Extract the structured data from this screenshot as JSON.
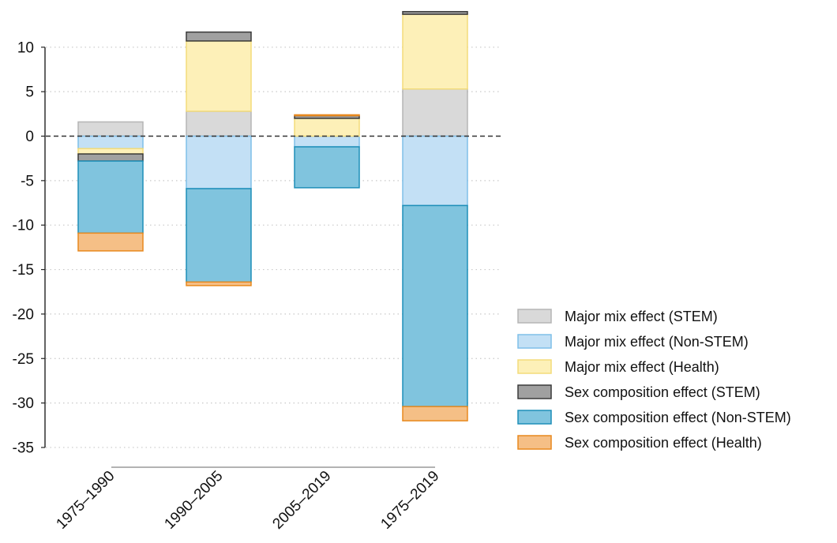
{
  "chart_data": {
    "type": "bar",
    "stacked": true,
    "categories": [
      "1975–1990",
      "1990–2005",
      "2005–2019",
      "1975–2019"
    ],
    "series": [
      {
        "name": "Major mix effect (STEM)",
        "values": [
          1.6,
          2.8,
          0.0,
          5.3
        ],
        "fill": "#d9d9d9",
        "stroke": "#b5b5b5"
      },
      {
        "name": "Major mix effect (Non-STEM)",
        "values": [
          -1.4,
          -5.9,
          -1.2,
          -7.8
        ],
        "fill": "#c3e0f5",
        "stroke": "#7fbfe8"
      },
      {
        "name": "Major mix effect (Health)",
        "values": [
          -0.6,
          7.9,
          2.0,
          8.4
        ],
        "fill": "#fdf0b8",
        "stroke": "#f3dc7a"
      },
      {
        "name": "Sex composition effect (STEM)",
        "values": [
          -0.8,
          1.0,
          0.3,
          0.3
        ],
        "fill": "#a0a0a0",
        "stroke": "#3a3a3a"
      },
      {
        "name": "Sex composition effect (Non-STEM)",
        "values": [
          -8.1,
          -10.5,
          -4.6,
          -22.6
        ],
        "fill": "#80c4de",
        "stroke": "#1e8fb8"
      },
      {
        "name": "Sex composition effect (Health)",
        "values": [
          -2.0,
          -0.4,
          0.1,
          -1.6
        ],
        "fill": "#f5bf86",
        "stroke": "#e8891e"
      }
    ],
    "y_ticks": [
      10,
      5,
      0,
      -5,
      -10,
      -15,
      -20,
      -25,
      -30,
      -35
    ],
    "ylim": [
      -35,
      14
    ],
    "zero_line": "dashed",
    "grid": "horizontal dotted",
    "legend_position": "right",
    "xlabel": "",
    "ylabel": ""
  }
}
